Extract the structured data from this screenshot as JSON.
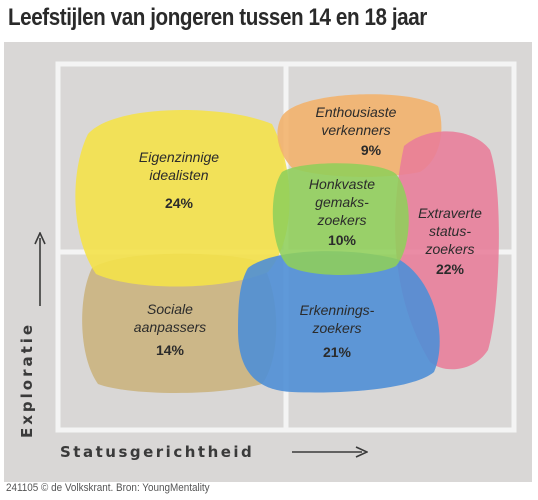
{
  "title": "Leefstijlen van jongeren tussen 14 en 18 jaar",
  "axes": {
    "y_label": "Exploratie",
    "x_label": "Statusgerichtheid"
  },
  "credit": "241105 © de Volkskrant. Bron: YoungMentality",
  "groups": {
    "eigenzinnige": {
      "name_line1": "Eigenzinnige",
      "name_line2": "idealisten",
      "pct": "24%",
      "color": "#f4e24a"
    },
    "enthousiaste": {
      "name_line1": "Enthousiaste",
      "name_line2": "verkenners",
      "pct": "9%",
      "color": "#f2b26a"
    },
    "honkvaste": {
      "name_line1": "Honkvaste",
      "name_line2": "gemaks-",
      "name_line3": "zoekers",
      "pct": "10%",
      "color": "#8fcf5a"
    },
    "extraverte": {
      "name_line1": "Extraverte",
      "name_line2": "status-",
      "name_line3": "zoekers",
      "pct": "22%",
      "color": "#e87d9a"
    },
    "sociale": {
      "name_line1": "Sociale",
      "name_line2": "aanpassers",
      "pct": "14%",
      "color": "#c9b27a"
    },
    "erkennings": {
      "name_line1": "Erkennings-",
      "name_line2": "zoekers",
      "pct": "21%",
      "color": "#4f8fd6"
    }
  },
  "colors": {
    "panel_background": "#d9d7d6",
    "grid_lines": "#f4f4f4"
  }
}
